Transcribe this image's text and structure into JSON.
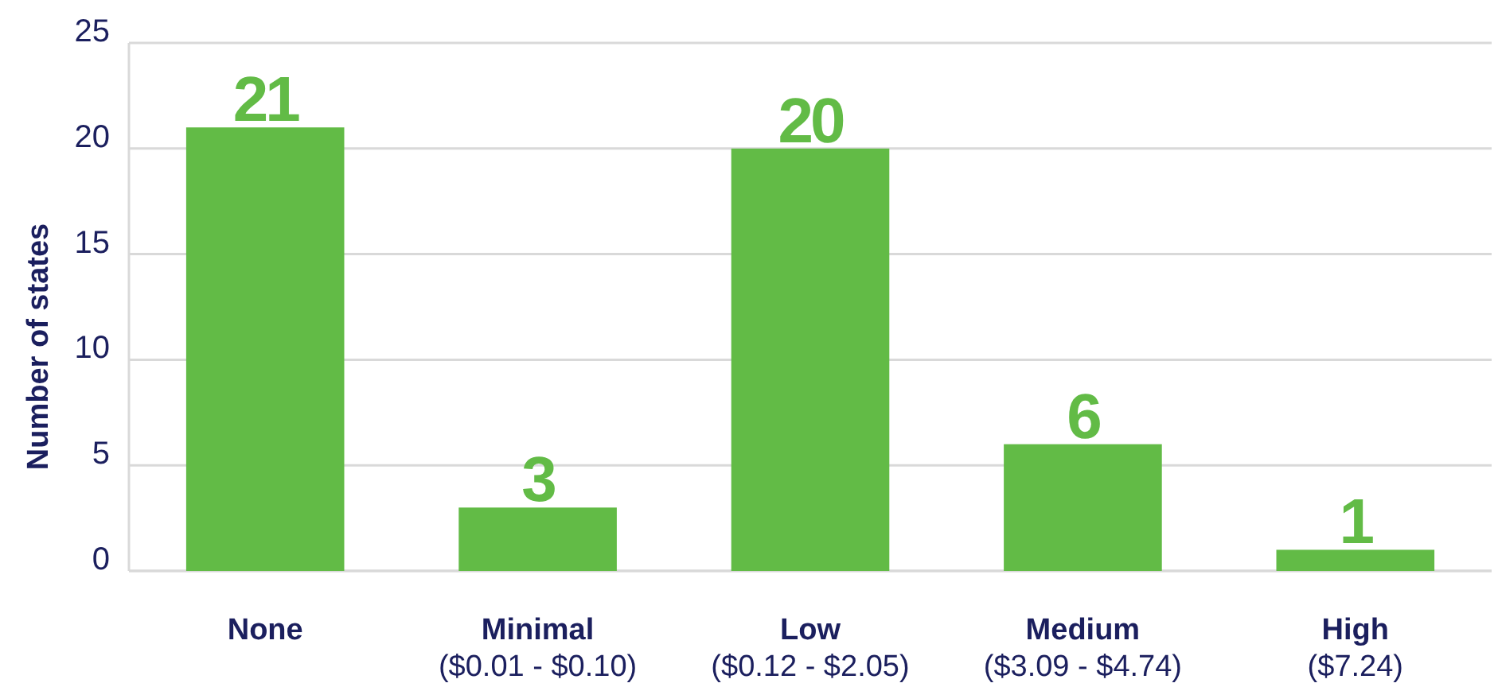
{
  "chart_data": {
    "type": "bar",
    "ylabel": "Number of states",
    "categories": [
      "None",
      "Minimal\n($0.01 - $0.10)",
      "Low\n($0.12 - $2.05)",
      "Medium\n($3.09 - $4.74)",
      "High\n($7.24)"
    ],
    "values": [
      21,
      3,
      20,
      6,
      1
    ],
    "color": "#62bb46",
    "ylim": [
      0,
      25
    ],
    "yticks": [
      0,
      5,
      10,
      15,
      20,
      25
    ],
    "grid": "y",
    "data_labels": true
  }
}
